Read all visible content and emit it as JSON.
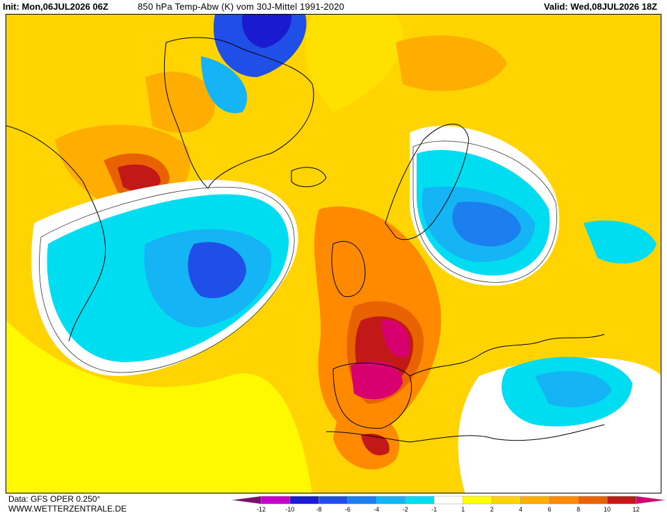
{
  "header": {
    "init": "Init: Mon,06JUL2026 06Z",
    "title": "850 hPa Temp-Abw (K) vom 30J-Mittel 1991-2020",
    "valid": "Valid: Wed,08JUL2026 18Z"
  },
  "footer": {
    "data_source": "Data: GFS OPER 0.250°",
    "website": "WWW.WETTERZENTRALE.DE"
  },
  "legend": {
    "ticks": [
      "-12",
      "-10",
      "-8",
      "-6",
      "-4",
      "-2",
      "-1",
      "1",
      "2",
      "4",
      "6",
      "8",
      "10",
      "12"
    ],
    "colors": [
      "#7a0f6e",
      "#c400c8",
      "#1a1ad0",
      "#1f4fe6",
      "#1b7ff0",
      "#14b4f5",
      "#00dcf0",
      "#ffffff",
      "#ffff00",
      "#ffd400",
      "#ffae00",
      "#ff8a00",
      "#e86200",
      "#c21818",
      "#d8006e"
    ]
  },
  "colors": {
    "background_warm": "#ffd400",
    "near_zero": "#ffffff",
    "cold_light": "#00dcf0",
    "cold_mid": "#14b4f5",
    "cold_deep": "#1f4fe6",
    "warm_strong": "#ff8a00",
    "hot": "#c21818",
    "extreme_hot": "#d8006e"
  }
}
